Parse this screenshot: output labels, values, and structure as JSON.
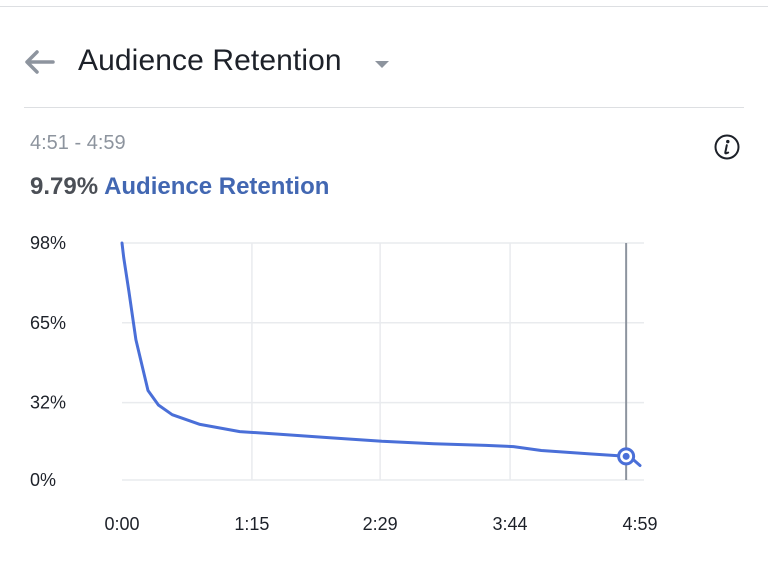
{
  "header": {
    "back_icon": "arrow-left-icon",
    "title": "Audience Retention",
    "dropdown_icon": "caret-down-icon"
  },
  "summary": {
    "range": "4:51 - 4:59",
    "value": "9.79%",
    "label": "Audience Retention",
    "info_icon": "info-icon"
  },
  "colors": {
    "accent": "#4267b2",
    "line": "#4a6fd8",
    "grid": "#e9ebee",
    "marker_line": "#8d949e"
  },
  "chart_data": {
    "type": "line",
    "title": "",
    "xlabel": "",
    "ylabel": "",
    "x_ticks": [
      {
        "label": "0:00",
        "sec": 0
      },
      {
        "label": "1:15",
        "sec": 75
      },
      {
        "label": "2:29",
        "sec": 149
      },
      {
        "label": "3:44",
        "sec": 224
      },
      {
        "label": "4:59",
        "sec": 299
      }
    ],
    "y_ticks": [
      {
        "label": "98%",
        "value": 98
      },
      {
        "label": "65%",
        "value": 65
      },
      {
        "label": "32%",
        "value": 32
      },
      {
        "label": "0%",
        "value": 0
      }
    ],
    "xlim": [
      0,
      299
    ],
    "ylim": [
      0,
      98
    ],
    "grid": true,
    "series": [
      {
        "points": [
          [
            0,
            98
          ],
          [
            1,
            92
          ],
          [
            4,
            78
          ],
          [
            8,
            58
          ],
          [
            15,
            37
          ],
          [
            21,
            31
          ],
          [
            29,
            27
          ],
          [
            45,
            23
          ],
          [
            68,
            20
          ],
          [
            90,
            19
          ],
          [
            120,
            17.5
          ],
          [
            150,
            16
          ],
          [
            180,
            15
          ],
          [
            210,
            14.3
          ],
          [
            226,
            13.8
          ],
          [
            242,
            12.2
          ],
          [
            270,
            10.8
          ],
          [
            291,
            9.79
          ],
          [
            295,
            8.5
          ],
          [
            299,
            6
          ]
        ]
      }
    ],
    "highlight": {
      "x": 291,
      "y": 9.79
    }
  }
}
